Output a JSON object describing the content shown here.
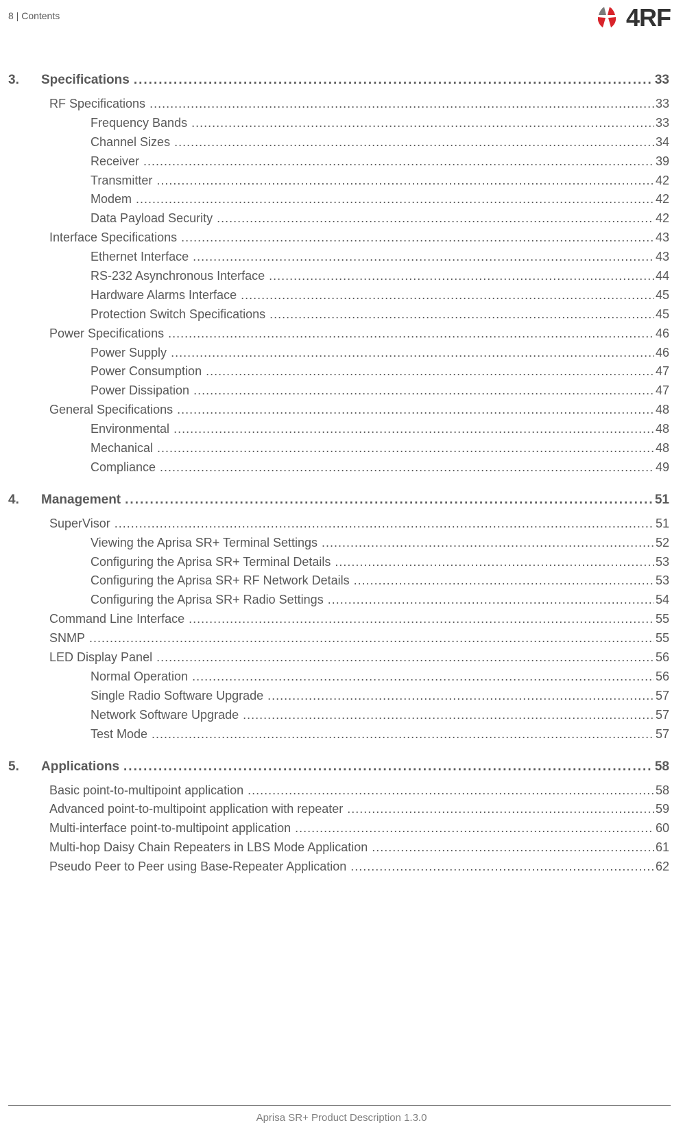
{
  "header": {
    "text": "8  |  Contents"
  },
  "logo": {
    "brand_text": "4RF",
    "dot_color_left": "#7a7a7a",
    "dot_color_right": "#d8232a"
  },
  "footer": {
    "text": "Aprisa SR+ Product Description 1.3.0"
  },
  "toc": {
    "dot_leader": "............................................................................................................................................................................................................",
    "chapters": [
      {
        "num": "3.",
        "title": "Specifications",
        "page": "33",
        "items": [
          {
            "level": 1,
            "title": "RF Specifications",
            "page": "33"
          },
          {
            "level": 2,
            "title": "Frequency Bands",
            "page": "33"
          },
          {
            "level": 2,
            "title": "Channel Sizes",
            "page": "34"
          },
          {
            "level": 2,
            "title": "Receiver",
            "page": "39"
          },
          {
            "level": 2,
            "title": "Transmitter",
            "page": "42"
          },
          {
            "level": 2,
            "title": "Modem",
            "page": "42"
          },
          {
            "level": 2,
            "title": "Data Payload Security",
            "page": "42"
          },
          {
            "level": 1,
            "title": "Interface Specifications",
            "page": "43"
          },
          {
            "level": 2,
            "title": "Ethernet Interface",
            "page": "43"
          },
          {
            "level": 2,
            "title": "RS-232 Asynchronous Interface",
            "page": "44"
          },
          {
            "level": 2,
            "title": "Hardware Alarms Interface",
            "page": "45"
          },
          {
            "level": 2,
            "title": "Protection Switch Specifications",
            "page": "45"
          },
          {
            "level": 1,
            "title": "Power Specifications",
            "page": "46"
          },
          {
            "level": 2,
            "title": "Power Supply",
            "page": "46"
          },
          {
            "level": 2,
            "title": "Power Consumption",
            "page": "47"
          },
          {
            "level": 2,
            "title": "Power Dissipation",
            "page": "47"
          },
          {
            "level": 1,
            "title": "General Specifications",
            "page": "48"
          },
          {
            "level": 2,
            "title": "Environmental",
            "page": "48"
          },
          {
            "level": 2,
            "title": "Mechanical",
            "page": "48"
          },
          {
            "level": 2,
            "title": "Compliance",
            "page": "49"
          }
        ]
      },
      {
        "num": "4.",
        "title": "Management",
        "page": "51",
        "items": [
          {
            "level": 1,
            "title": "SuperVisor",
            "page": "51"
          },
          {
            "level": 2,
            "title": "Viewing the Aprisa SR+ Terminal Settings",
            "page": "52"
          },
          {
            "level": 2,
            "title": "Configuring the Aprisa SR+ Terminal Details",
            "page": "53"
          },
          {
            "level": 2,
            "title": "Configuring the Aprisa SR+ RF Network Details",
            "page": "53"
          },
          {
            "level": 2,
            "title": "Configuring the Aprisa SR+ Radio Settings",
            "page": "54"
          },
          {
            "level": 1,
            "title": "Command Line Interface",
            "page": "55"
          },
          {
            "level": 1,
            "title": "SNMP",
            "page": "55"
          },
          {
            "level": 1,
            "title": "LED Display Panel",
            "page": "56"
          },
          {
            "level": 2,
            "title": "Normal Operation",
            "page": "56"
          },
          {
            "level": 2,
            "title": "Single Radio Software Upgrade",
            "page": "57"
          },
          {
            "level": 2,
            "title": "Network Software Upgrade",
            "page": "57"
          },
          {
            "level": 2,
            "title": "Test Mode",
            "page": "57"
          }
        ]
      },
      {
        "num": "5.",
        "title": "Applications",
        "page": "58",
        "items": [
          {
            "level": 1,
            "title": "Basic point-to-multipoint application",
            "page": "58"
          },
          {
            "level": 1,
            "title": "Advanced point-to-multipoint application with repeater",
            "page": "59"
          },
          {
            "level": 1,
            "title": "Multi-interface point-to-multipoint application",
            "page": "60"
          },
          {
            "level": 1,
            "title": "Multi-hop Daisy Chain Repeaters in LBS Mode Application",
            "page": "61"
          },
          {
            "level": 1,
            "title": "Pseudo Peer to Peer using Base-Repeater Application",
            "page": "62"
          }
        ]
      }
    ]
  }
}
